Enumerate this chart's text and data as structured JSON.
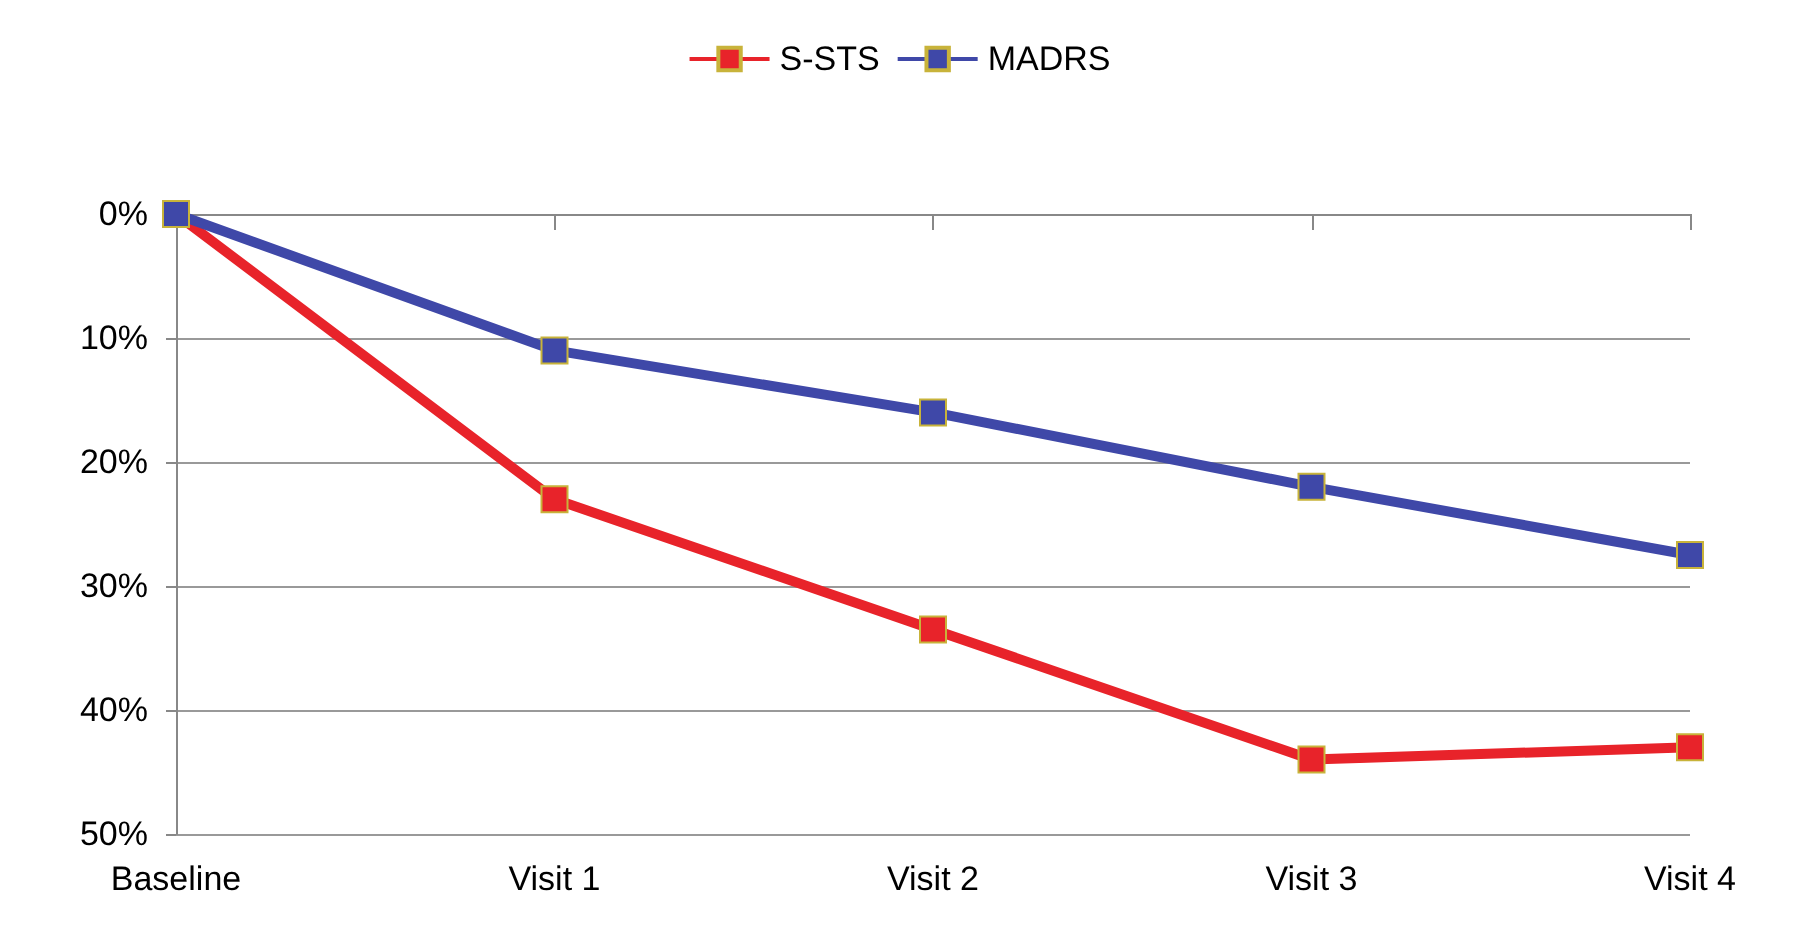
{
  "chart_data": {
    "type": "line",
    "categories": [
      "Baseline",
      "Visit 1",
      "Visit 2",
      "Visit 3",
      "Visit 4"
    ],
    "series": [
      {
        "name": "S-STS",
        "color": "#e8232a",
        "values": [
          0,
          23,
          33.5,
          44,
          43
        ]
      },
      {
        "name": "MADRS",
        "color": "#3f48a8",
        "values": [
          0,
          11,
          16,
          22,
          27.5
        ]
      }
    ],
    "ylim": [
      50,
      0
    ],
    "yticks": [
      {
        "value": 0,
        "label": "0%"
      },
      {
        "value": 10,
        "label": "10%"
      },
      {
        "value": 20,
        "label": "20%"
      },
      {
        "value": 30,
        "label": "30%"
      },
      {
        "value": 40,
        "label": "40%"
      },
      {
        "value": 50,
        "label": "50%"
      }
    ],
    "grid": "y",
    "legend": "top",
    "marker": "square",
    "line_style": "solid"
  }
}
